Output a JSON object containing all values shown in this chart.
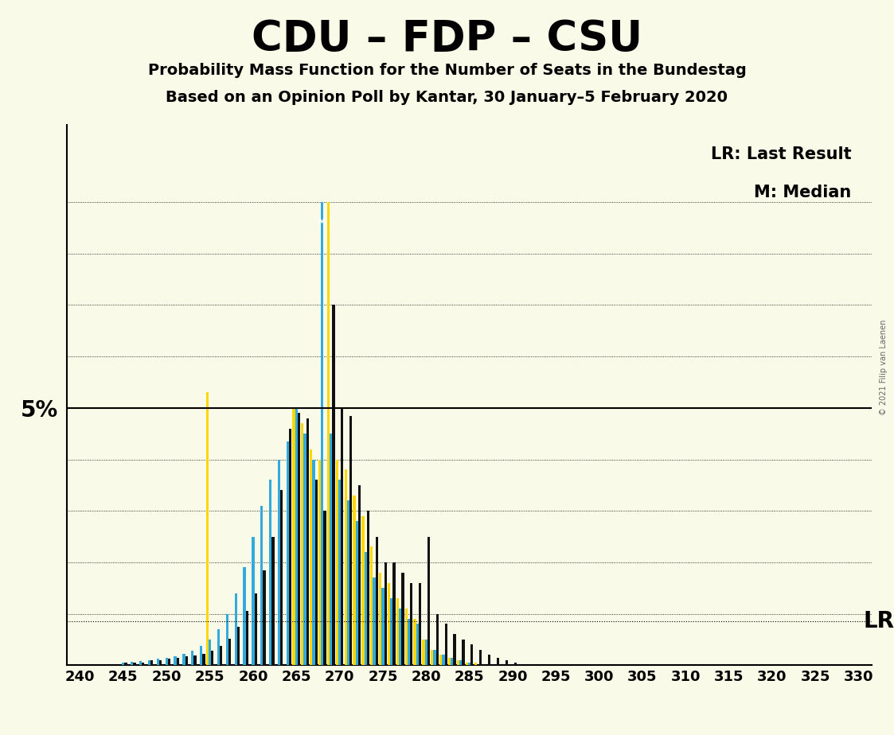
{
  "title": "CDU – FDP – CSU",
  "subtitle1": "Probability Mass Function for the Number of Seats in the Bundestag",
  "subtitle2": "Based on an Opinion Poll by Kantar, 30 January–5 February 2020",
  "bg_color": "#FAFAE8",
  "col_black": "#111111",
  "col_blue": "#33AADD",
  "col_yellow": "#FFD700",
  "label_lr": "LR: Last Result",
  "label_m": "M: Median",
  "label_lr_short": "LR",
  "copyright": "© 2021 Filip van Laenen",
  "seat_min": 240,
  "seat_max": 330,
  "lr_pct": 0.85,
  "five_pct": 5.0,
  "ymax": 10.5,
  "pmf_black": [
    0,
    0,
    0,
    0,
    0,
    0.05,
    0.05,
    0.05,
    0.1,
    0.1,
    0.13,
    0.15,
    0.17,
    0.19,
    0.22,
    0.28,
    0.37,
    0.52,
    0.75,
    1.05,
    1.4,
    1.85,
    2.5,
    3.4,
    4.6,
    4.9,
    4.8,
    3.6,
    3.0,
    7.0,
    5.0,
    4.85,
    3.5,
    3.0,
    2.5,
    2.0,
    2.0,
    1.8,
    1.6,
    1.6,
    2.5,
    1.0,
    0.8,
    0.6,
    0.5,
    0.4,
    0.3,
    0.2,
    0.15,
    0.1,
    0.05,
    0,
    0,
    0,
    0,
    0,
    0,
    0,
    0,
    0,
    0,
    0,
    0,
    0,
    0,
    0,
    0,
    0,
    0,
    0,
    0,
    0,
    0,
    0,
    0,
    0,
    0,
    0,
    0,
    0,
    0,
    0,
    0,
    0,
    0,
    0,
    0,
    0,
    0,
    0,
    0
  ],
  "pmf_blue": [
    0,
    0,
    0,
    0,
    0,
    0.05,
    0.06,
    0.08,
    0.1,
    0.12,
    0.15,
    0.18,
    0.22,
    0.28,
    0.37,
    0.5,
    0.7,
    1.0,
    1.4,
    1.9,
    2.5,
    3.1,
    3.6,
    4.0,
    4.35,
    5.0,
    4.5,
    4.0,
    9.0,
    4.5,
    3.6,
    3.2,
    2.8,
    2.2,
    1.7,
    1.5,
    1.3,
    1.1,
    0.9,
    0.8,
    0.5,
    0.3,
    0.2,
    0.15,
    0.1,
    0.05,
    0,
    0,
    0,
    0,
    0,
    0,
    0,
    0,
    0,
    0,
    0,
    0,
    0,
    0,
    0,
    0,
    0,
    0,
    0,
    0,
    0,
    0,
    0,
    0,
    0,
    0,
    0,
    0,
    0,
    0,
    0,
    0,
    0,
    0,
    0,
    0,
    0,
    0,
    0,
    0,
    0,
    0,
    0,
    0,
    0
  ],
  "pmf_yellow": [
    0,
    0,
    0,
    0,
    0,
    0,
    0,
    0,
    0,
    0,
    0,
    0,
    0,
    0,
    0,
    5.3,
    0,
    0,
    0,
    0,
    0,
    0,
    0,
    0,
    0,
    5.0,
    4.7,
    4.2,
    4.0,
    9.0,
    4.0,
    3.8,
    3.3,
    2.9,
    2.3,
    1.8,
    1.6,
    1.3,
    1.1,
    0.9,
    0.5,
    0.3,
    0.2,
    0.15,
    0.1,
    0.05,
    0.05,
    0,
    0,
    0,
    0,
    0,
    0,
    0,
    0,
    0,
    0,
    0,
    0,
    0,
    0,
    0,
    0,
    0,
    0,
    0,
    0,
    0,
    0,
    0,
    0,
    0,
    0,
    0,
    0,
    0,
    0,
    0,
    0,
    0,
    0,
    0,
    0,
    0,
    0,
    0,
    0,
    0,
    0,
    0,
    0
  ]
}
